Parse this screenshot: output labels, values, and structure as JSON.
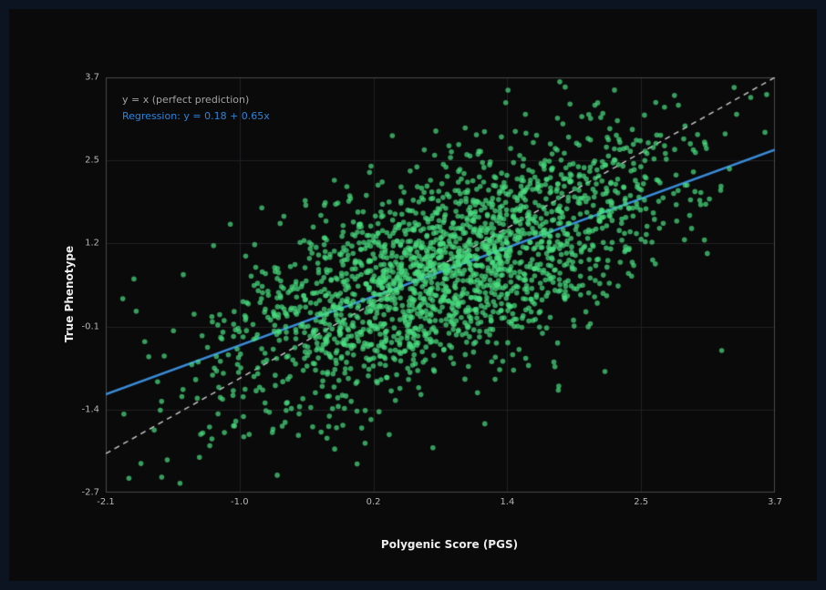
{
  "window": {
    "background": "#0d1421",
    "figure_background": "#0a0a0b"
  },
  "chart_data": {
    "type": "scatter",
    "title": "",
    "xlabel": "Polygenic Score (PGS)",
    "ylabel": "True Phenotype",
    "xlim": [
      -2.1,
      3.7
    ],
    "ylim": [
      -2.7,
      3.7
    ],
    "x_ticks": [
      "-2.1",
      "-1.0",
      "0.2",
      "1.4",
      "2.5",
      "3.7"
    ],
    "y_ticks": [
      "3.7",
      "2.5",
      "1.2",
      "-0.1",
      "-1.4",
      "-2.7"
    ],
    "grid": true,
    "legend": {
      "position": "top-left",
      "identity_label": "y = x (perfect prediction)",
      "regression_label": "Regression: y = 0.18 + 0.65x"
    },
    "identity_line": {
      "slope": 1,
      "intercept": 0,
      "style": "dashed"
    },
    "regression": {
      "intercept": 0.18,
      "slope": 0.65
    },
    "scatter": {
      "n_points": 2200,
      "seed": 7,
      "x_mean": 0.85,
      "x_sd": 0.95,
      "noise_sd": 0.8,
      "point_radius": 2.8,
      "point_color": "rgba(74, 222, 128, 0.7)"
    },
    "colors": {
      "regression_line": "#3a8dd9",
      "identity_line": "#cfcfcf",
      "grid": "#222222",
      "spine": "#4a4a4a",
      "tick_label": "#b5b5b5",
      "axis_label": "#ececec",
      "legend_identity_text": "#a3a3a3",
      "legend_regression_text": "#2d84d8"
    }
  }
}
